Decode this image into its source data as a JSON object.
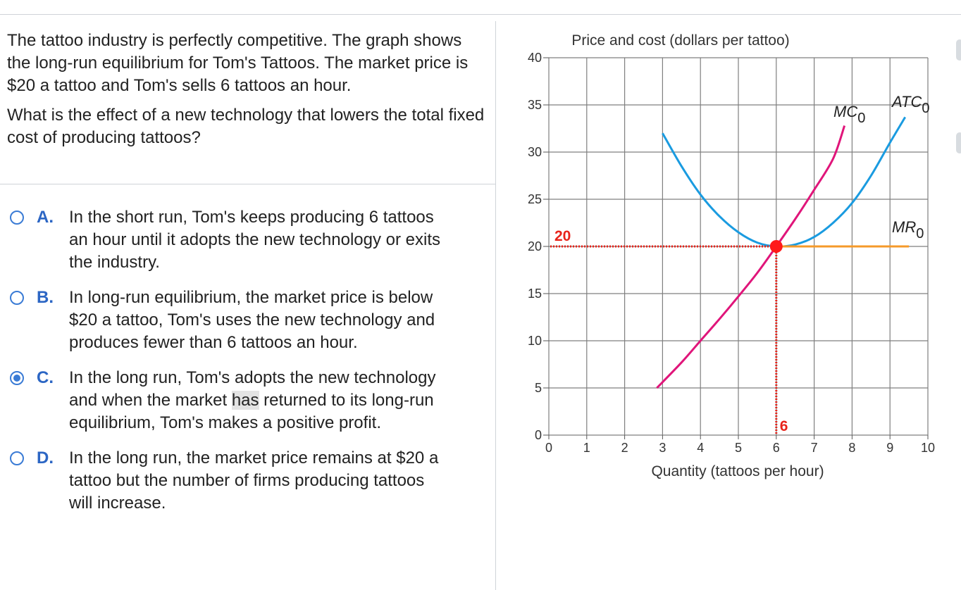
{
  "question": {
    "paragraph1": "The tattoo industry is perfectly competitive. The graph shows the long-run equilibrium for Tom's Tattoos. The market price is $20 a tattoo and Tom's sells 6 tattoos an hour.",
    "paragraph2": "What is the effect of a new technology that lowers the total fixed cost of producing tattoos?"
  },
  "options": [
    {
      "letter": "A.",
      "selected": false,
      "lines": [
        "In the short run, Tom's keeps producing 6 tattoos",
        "an hour until it adopts the new technology or exits",
        "the industry."
      ]
    },
    {
      "letter": "B.",
      "selected": false,
      "lines": [
        "In long-run equilibrium, the market price is below",
        "$20 a tattoo, Tom's uses the new technology and",
        "produces fewer than 6 tattoos an hour."
      ]
    },
    {
      "letter": "C.",
      "selected": true,
      "lines": [
        "In the long run, Tom's adopts the new technology",
        "and when the market ",
        "has",
        " returned to its long-run",
        "equilibrium, Tom's makes a positive profit."
      ]
    },
    {
      "letter": "D.",
      "selected": false,
      "lines": [
        "In the long run, the market price remains at $20 a",
        "tattoo but the number of firms producing tattoos",
        "will increase."
      ]
    }
  ],
  "chart_data": {
    "type": "line",
    "ylabel": "Price and cost (dollars per tattoo)",
    "xlabel": "Quantity (tattoos per hour)",
    "xlim": [
      0,
      10
    ],
    "ylim": [
      0,
      40
    ],
    "x_ticks": [
      0,
      1,
      2,
      3,
      4,
      5,
      6,
      7,
      8,
      9,
      10
    ],
    "y_ticks": [
      0,
      5,
      10,
      15,
      20,
      25,
      30,
      35,
      40
    ],
    "grid": true,
    "series": [
      {
        "name": "ATC",
        "subscript": "0",
        "color": "#1a9be0",
        "points": [
          [
            3,
            32
          ],
          [
            3.5,
            28.5
          ],
          [
            4,
            25.5
          ],
          [
            4.5,
            23.2
          ],
          [
            5,
            21.5
          ],
          [
            5.5,
            20.4
          ],
          [
            6,
            20
          ],
          [
            6.5,
            20.2
          ],
          [
            7,
            21
          ],
          [
            7.5,
            22.5
          ],
          [
            8,
            24.6
          ],
          [
            8.5,
            27.5
          ],
          [
            9,
            31
          ],
          [
            9.4,
            33.7
          ]
        ]
      },
      {
        "name": "MC",
        "subscript": "0",
        "color": "#e0157a",
        "points": [
          [
            2.85,
            5
          ],
          [
            3.5,
            7.7
          ],
          [
            4,
            10
          ],
          [
            4.5,
            12.3
          ],
          [
            5,
            14.7
          ],
          [
            5.5,
            17.2
          ],
          [
            6,
            20
          ],
          [
            6.5,
            22.9
          ],
          [
            7,
            26
          ],
          [
            7.5,
            29.3
          ],
          [
            7.8,
            32.8
          ]
        ]
      },
      {
        "name": "MR",
        "subscript": "0",
        "color": "#f59a2a",
        "points": [
          [
            6,
            20
          ],
          [
            9.5,
            20
          ]
        ]
      }
    ],
    "equilibrium": {
      "x": 6,
      "y": 20,
      "price_label": "20",
      "quantity_label": "6"
    }
  }
}
